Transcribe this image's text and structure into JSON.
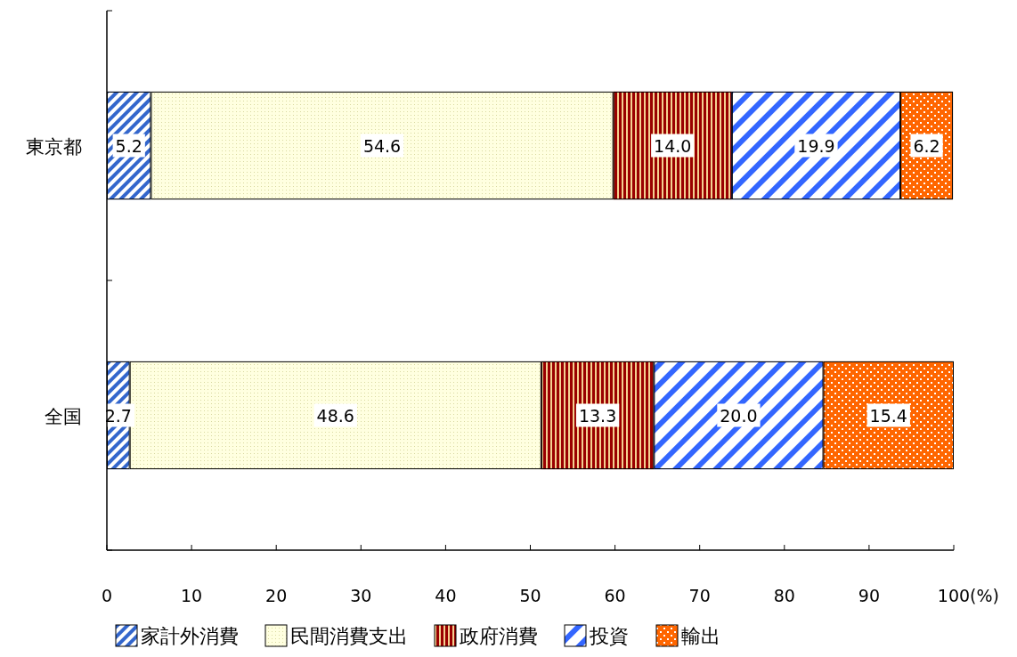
{
  "chart_data": {
    "type": "bar",
    "orientation": "horizontal",
    "stacked": true,
    "categories": [
      "東京都",
      "全国"
    ],
    "xlim": [
      0,
      100
    ],
    "xticks": [
      0,
      10,
      20,
      30,
      40,
      50,
      60,
      70,
      80,
      90,
      100
    ],
    "xlabel": "(%)",
    "series": [
      {
        "name": "家計外消費",
        "color": "#3366cc",
        "values": [
          5.2,
          2.7
        ],
        "value_labels": [
          "5.2",
          "2.7"
        ]
      },
      {
        "name": "民間消費支出",
        "color": "#ffffe0",
        "values": [
          54.6,
          48.6
        ],
        "value_labels": [
          "54.6",
          "48.6"
        ]
      },
      {
        "name": "政府消費",
        "color": "#990000",
        "values": [
          14.0,
          13.3
        ],
        "value_labels": [
          "14.0",
          "13.3"
        ]
      },
      {
        "name": "投資",
        "color": "#3366ff",
        "values": [
          19.9,
          20.0
        ],
        "value_labels": [
          "19.9",
          "20.0"
        ]
      },
      {
        "name": "輸出",
        "color": "#ff6600",
        "values": [
          6.2,
          15.4
        ],
        "value_labels": [
          "6.2",
          "15.4"
        ]
      }
    ],
    "legend": "bottom",
    "grid": false
  }
}
